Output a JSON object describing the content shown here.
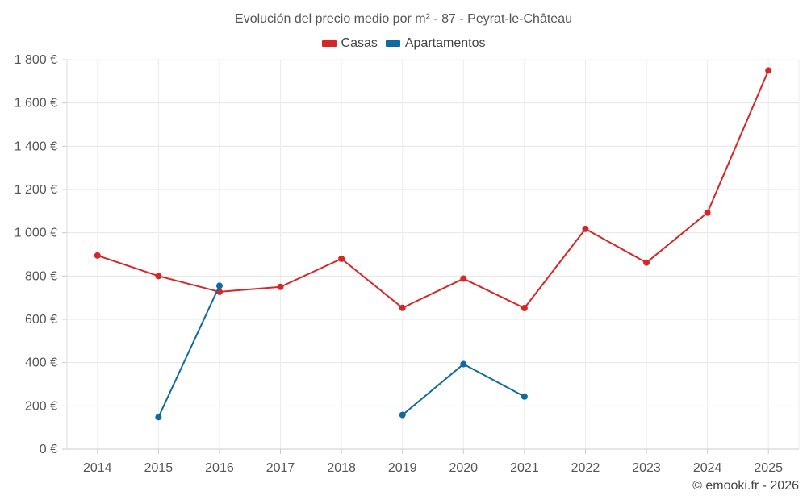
{
  "chart_data": {
    "type": "line",
    "title": "Evolución del precio medio por m² - 87 - Peyrat-le-Château",
    "categories": [
      "2014",
      "2015",
      "2016",
      "2017",
      "2018",
      "2019",
      "2020",
      "2021",
      "2022",
      "2023",
      "2024",
      "2025"
    ],
    "ylim": [
      0,
      1800
    ],
    "yticks": [
      0,
      200,
      400,
      600,
      800,
      1000,
      1200,
      1400,
      1600,
      1800
    ],
    "ytick_labels": [
      "0 €",
      "200 €",
      "400 €",
      "600 €",
      "800 €",
      "1 000 €",
      "1 200 €",
      "1 400 €",
      "1 600 €",
      "1 800 €"
    ],
    "xlabel": "",
    "ylabel": "",
    "grid": true,
    "legend_position": "top-center",
    "series": [
      {
        "name": "Casas",
        "color": "#d62728",
        "values": [
          895,
          800,
          727,
          750,
          880,
          653,
          788,
          652,
          1018,
          862,
          1093,
          1750
        ]
      },
      {
        "name": "Apartamentos",
        "color": "#0f6aa0",
        "values": [
          null,
          148,
          755,
          null,
          null,
          158,
          393,
          243,
          null,
          null,
          null,
          null
        ]
      }
    ]
  },
  "credit": "© emooki.fr - 2026"
}
